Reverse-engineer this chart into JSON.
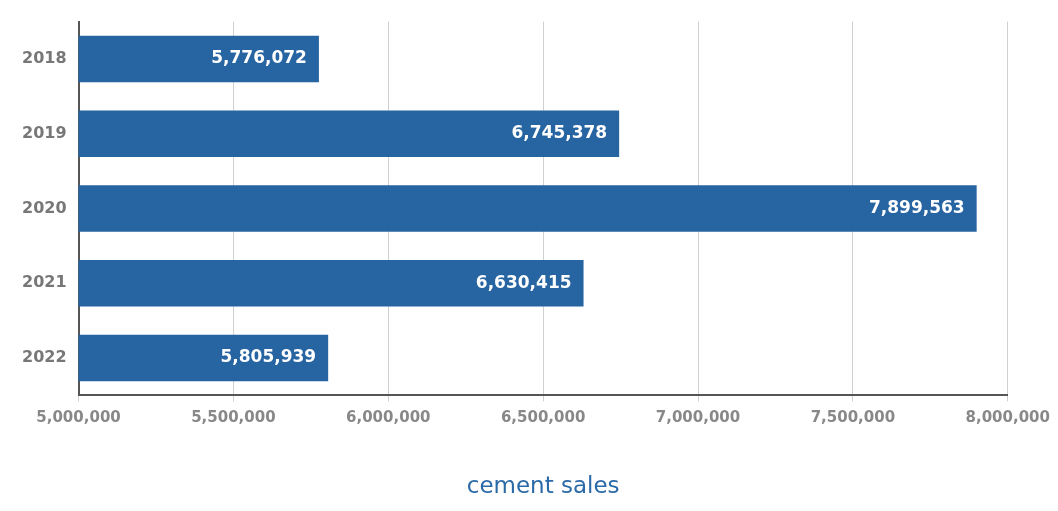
{
  "chart_data": {
    "type": "bar",
    "orientation": "horizontal",
    "xlabel": "cement sales",
    "categories": [
      "2018",
      "2019",
      "2020",
      "2021",
      "2022"
    ],
    "series": [
      {
        "color": "#2764a2",
        "values": [
          5776072,
          6745378,
          7899563,
          6630415,
          5805939
        ],
        "value_labels": [
          "5,776,072",
          "6,745,378",
          "7,899,563",
          "6,630,415",
          "5,805,939"
        ]
      }
    ],
    "xlim": [
      5000000,
      8000000
    ],
    "xticks": [
      {
        "value": 5000000,
        "label": "5,000,000"
      },
      {
        "value": 5500000,
        "label": "5,500,000"
      },
      {
        "value": 6000000,
        "label": "6,000,000"
      },
      {
        "value": 6500000,
        "label": "6,500,000"
      },
      {
        "value": 7000000,
        "label": "7,000,000"
      },
      {
        "value": 7500000,
        "label": "7,500,000"
      },
      {
        "value": 8000000,
        "label": "8,000,000"
      }
    ],
    "grid": "x",
    "legend": false
  }
}
